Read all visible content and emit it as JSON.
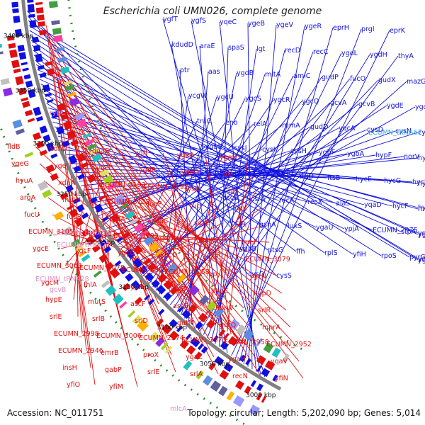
{
  "title": "Escherichia coli UMN026, complete genome",
  "footer": {
    "accession": "Accession: NC_011751",
    "summary": "Topology: circular; Length: 5,202,090 bp; Genes: 5,014"
  },
  "colors": {
    "forward": "#1010e0",
    "reverse": "#e01010",
    "rna": "#e58fc3",
    "special": "#2fa7e4",
    "backbone": "#808080",
    "dots": "#2a8a2a"
  },
  "ticks": [
    "3400 kbp",
    "3350 kbp",
    "3300 kbp",
    "3250 kbp",
    "3200 kbp",
    "3150 kbp",
    "3100 kbp",
    "3050 kbp",
    "3000 kbp"
  ],
  "labels_blue": [
    "ygfT",
    "ygfS",
    "yqeC",
    "ygeB",
    "ygeV",
    "ygeR",
    "eprH",
    "prgI",
    "eprK",
    "kdudD",
    "araE",
    "spaS",
    "lgt",
    "recD",
    "recC",
    "ygdL",
    "ygdH",
    "thyA",
    "ptr",
    "aas",
    "ygdB",
    "mltA",
    "amiC",
    "gudP",
    "fucO",
    "gudX",
    "mazG",
    "ycgW",
    "ygcU",
    "ygcS",
    "ygcR",
    "ygcQ",
    "gcvA",
    "gcvB",
    "ygdE",
    "ygdD",
    "truC",
    "eno",
    "relA",
    "rumA",
    "gudD",
    "yqcA",
    "cysD",
    "cysN",
    "cysC",
    "ygbE",
    "cysJ",
    "cysI",
    "cysH",
    "ygbF",
    "ygbA",
    "hypF",
    "norV",
    "hydN",
    "ispD",
    "ispF",
    "surE",
    "truD",
    "ftsB",
    "hycE",
    "hycG",
    "hycH",
    "hycI",
    "ascG",
    "csrA",
    "recA",
    "recX",
    "alaS",
    "yqaD",
    "hycF",
    "hycD",
    "mlpD",
    "pcm",
    "gshA",
    "luxS",
    "ygaU",
    "ypjA",
    "ECUMN_2975",
    "stpA",
    "ygaE",
    "ygaC",
    "ygaB",
    "ptsG",
    "ffh",
    "rplS",
    "yfiH",
    "rpoS",
    "pyrG",
    "yqaA",
    "ygaI",
    "cysQ",
    "cysS"
  ],
  "labels_red": [
    "fldB",
    "xdhD",
    "guaD",
    "ygfJ",
    "ygeA",
    "ygeH",
    "ygeG",
    "ygeJ",
    "ygeI",
    "ygdR",
    "ygdQ",
    "idi",
    "hyuA",
    "xdhA",
    "ECUMN_3193",
    "ECUMN_3192",
    "lysR",
    "tas",
    "argA",
    "mutH",
    "ECUMN_3138",
    "fucP",
    "fucI",
    "fucK",
    "fucU",
    "fucR",
    "csdA",
    "sdaC",
    "sdaB",
    "xni",
    "ECUMN_3105",
    "ECUMN_3107",
    "ECUMN_3109",
    "ygdH",
    "barA",
    "queF",
    "ygcE",
    "ygcF",
    "ygcG",
    "ygcO",
    "ygcP",
    "ECUMN_3079",
    "ECUMN_3063",
    "ECUMN_3078",
    "ECUMN_3055",
    "ECUMN_3058",
    "iap",
    "ygcN",
    "ygcM",
    "fhlA",
    "hypA",
    "hypB",
    "hypC",
    "hypD",
    "hypE",
    "mutS",
    "ascF",
    "ascB",
    "norW",
    "srlR",
    "srlE",
    "srlB",
    "srlD",
    "gutM",
    "gutQ",
    "mprA",
    "ECUMN_2998",
    "ECUMN_3006",
    "ECUMN_2974",
    "ECUMN_2973",
    "ECUMN_2958",
    "ECUMN_2952",
    "ECUMN_2946",
    "emrB",
    "proX",
    "ygaZ",
    "ygaH",
    "yqaV",
    "insH",
    "gabP",
    "srlE",
    "srlA",
    "recN",
    "yfiN",
    "yfiO",
    "yfiM"
  ],
  "labels_pink": [
    "rygC",
    "ECUMN_tRNA26",
    "ECUMN_tRNA27",
    "ECUMN_tRNA28",
    "gcvB",
    "mlcA"
  ],
  "labels_cyan": [
    "ECUMN_tRNA67"
  ]
}
